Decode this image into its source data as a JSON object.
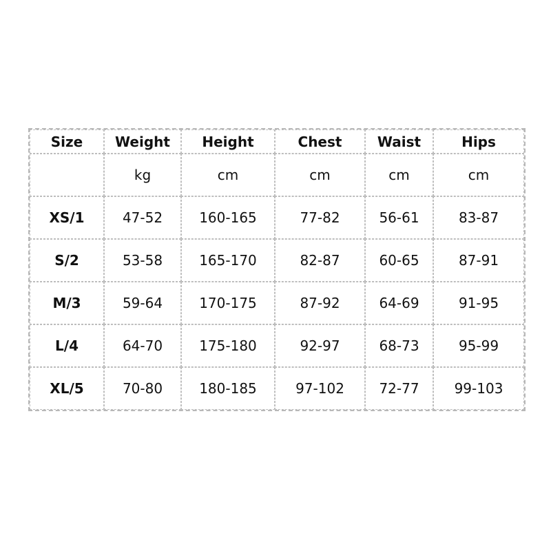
{
  "headers": [
    "Size",
    "Weight",
    "Height",
    "Chest",
    "Waist",
    "Hips"
  ],
  "units": [
    "",
    "kg",
    "cm",
    "cm",
    "cm",
    "cm"
  ],
  "rows": [
    [
      "XS/1",
      "47-52",
      "160-165",
      "77-82",
      "56-61",
      "83-87"
    ],
    [
      "S/2",
      "53-58",
      "165-170",
      "82-87",
      "60-65",
      "87-91"
    ],
    [
      "M/3",
      "59-64",
      "170-175",
      "87-92",
      "64-69",
      "91-95"
    ],
    [
      "L/4",
      "64-70",
      "175-180",
      "92-97",
      "68-73",
      "95-99"
    ],
    [
      "XL/5",
      "70-80",
      "180-185",
      "97-102",
      "72-77",
      "99-103"
    ]
  ]
}
